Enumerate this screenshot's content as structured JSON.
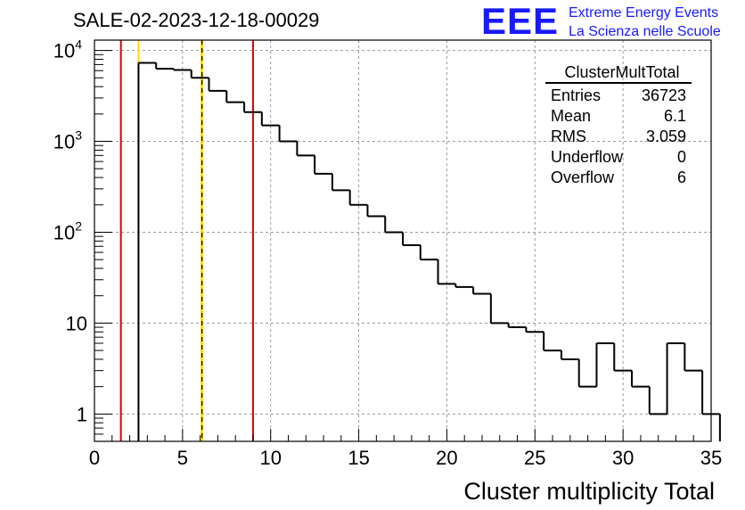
{
  "page_title": "SALE-02-2023-12-18-00029",
  "logo": {
    "mark": "EEE",
    "line1": "Extreme Energy Events",
    "line2": "La Scienza nelle Scuole"
  },
  "stats": {
    "title": "ClusterMultTotal",
    "rows": [
      {
        "label": "Entries",
        "value": "36723"
      },
      {
        "label": "Mean",
        "value": "6.1"
      },
      {
        "label": "RMS",
        "value": "3.059"
      },
      {
        "label": "Underflow",
        "value": "0"
      },
      {
        "label": "Overflow",
        "value": "6"
      }
    ]
  },
  "colors": {
    "histogram": "#000000",
    "cut_line": "#dd0000",
    "mean_line_outer": "#ffd700",
    "mean_line_inner": "#000000",
    "grid": "#9a9a9a",
    "logo": "#1a1aff"
  },
  "chart_data": {
    "type": "histogram",
    "title": "",
    "xlabel": "Cluster multiplicity Total",
    "ylabel": "",
    "log_y": true,
    "grid": true,
    "xlim": [
      0,
      35
    ],
    "ylim": [
      0.5,
      13000
    ],
    "x_ticks": [
      0,
      5,
      10,
      15,
      20,
      25,
      30,
      35
    ],
    "y_ticks": [
      {
        "value": 1,
        "label": "1"
      },
      {
        "value": 10,
        "label": "10"
      },
      {
        "value": 100,
        "label": "10",
        "exp": "2"
      },
      {
        "value": 1000,
        "label": "10",
        "exp": "3"
      },
      {
        "value": 10000,
        "label": "10",
        "exp": "4"
      }
    ],
    "bin_width": 1,
    "bin_edges_start": 2.5,
    "values": [
      7300,
      6300,
      6100,
      5000,
      3600,
      2700,
      2100,
      1500,
      1000,
      700,
      440,
      290,
      200,
      150,
      100,
      72,
      50,
      27,
      25,
      21,
      10,
      9,
      8,
      5,
      4,
      2,
      6,
      3,
      2,
      1,
      6,
      3,
      1
    ],
    "vertical_lines": [
      {
        "x": 1.5,
        "role": "cut"
      },
      {
        "x": 2.5,
        "role": "mean-band"
      },
      {
        "x": 6.1,
        "role": "mean"
      },
      {
        "x": 9.0,
        "role": "cut"
      }
    ]
  }
}
